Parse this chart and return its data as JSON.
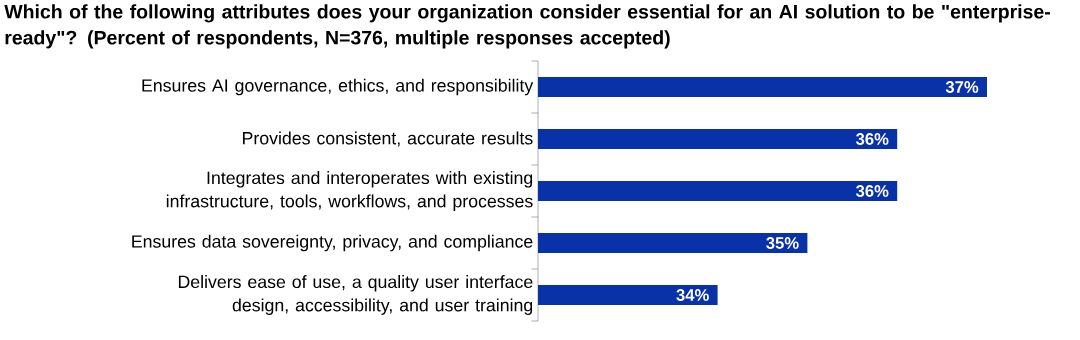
{
  "chart_data": {
    "type": "bar",
    "orientation": "horizontal",
    "title": "Which of the following attributes does your organization consider essential for an AI solution to be \"enterprise-ready\"? (Percent of respondents, N=376, multiple responses accepted)",
    "categories": [
      "Ensures AI governance, ethics, and responsibility",
      "Provides consistent, accurate results",
      "Integrates and interoperates with existing infrastructure, tools, workflows, and processes",
      "Ensures data sovereignty, privacy, and compliance",
      "Delivers ease of use, a quality user interface design, accessibility, and user training"
    ],
    "values": [
      37,
      36,
      36,
      35,
      34
    ],
    "value_labels": [
      "37%",
      "36%",
      "36%",
      "35%",
      "34%"
    ],
    "color": "#0a32a8",
    "xlim": [
      32,
      37
    ],
    "tick_labels": "y",
    "grid": false
  }
}
